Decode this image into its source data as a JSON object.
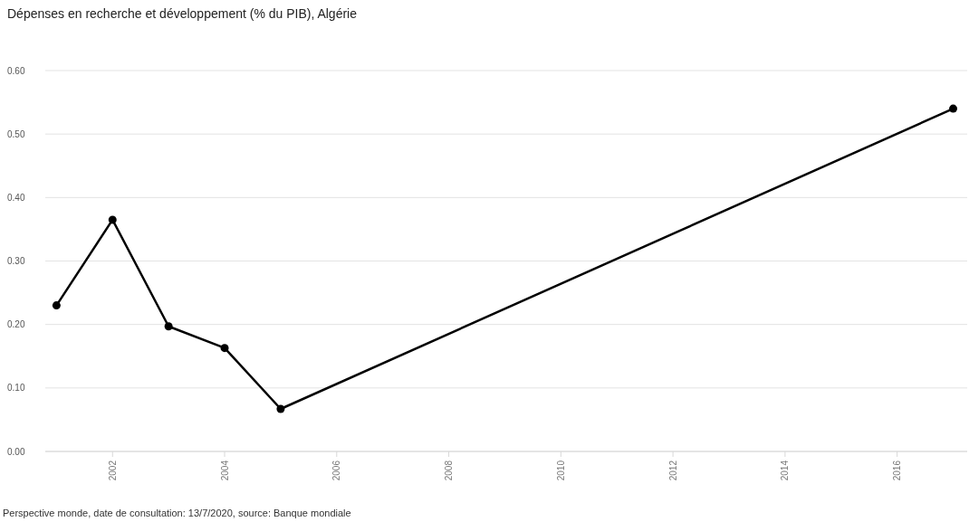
{
  "chart_data": {
    "type": "line",
    "title": "Dépenses en recherche et développement (% du PIB), Algérie",
    "x": [
      2001,
      2002,
      2003,
      2004,
      2005,
      2017
    ],
    "series": [
      {
        "color": "#000000",
        "values": [
          0.23,
          0.365,
          0.197,
          0.163,
          0.067,
          0.54
        ]
      }
    ],
    "xlim": [
      2000.8,
      2017.25
    ],
    "xticks": [
      2002,
      2004,
      2006,
      2008,
      2010,
      2012,
      2014,
      2016
    ],
    "ylim": [
      0,
      0.6
    ],
    "yticks": [
      {
        "value": 0,
        "label": "0.00"
      },
      {
        "value": 0.1,
        "label": "0.10"
      },
      {
        "value": 0.2,
        "label": "0.20"
      },
      {
        "value": 0.3,
        "label": "0.30"
      },
      {
        "value": 0.4,
        "label": "0.40"
      },
      {
        "value": 0.5,
        "label": "0.50"
      },
      {
        "value": 0.6,
        "label": "0.60"
      }
    ],
    "grid": "y",
    "marker": "circle",
    "line_style": "solid",
    "annotations": [
      "Perspective monde, date de consultation: 13/7/2020, source: Banque mondiale"
    ]
  }
}
